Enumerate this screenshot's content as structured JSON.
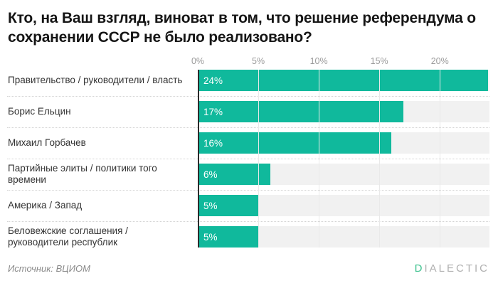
{
  "title": "Кто, на Ваш взгляд, виноват в том, что решение референдума о сохранении СССР не было реализовано?",
  "chart_data": {
    "type": "bar",
    "orientation": "horizontal",
    "categories": [
      "Правительство / руководители / власть",
      "Борис Ельцин",
      "Михаил Горбачев",
      "Партийные элиты / политики того\nвремени",
      "Америка / Запад",
      "Беловежские соглашения /\nруководители республик"
    ],
    "values": [
      24,
      17,
      16,
      6,
      5,
      5
    ],
    "value_labels": [
      "24%",
      "17%",
      "16%",
      "6%",
      "5%",
      "5%"
    ],
    "axis": {
      "ticks": [
        "0%",
        "5%",
        "10%",
        "15%",
        "20%"
      ],
      "tick_values": [
        0,
        5,
        10,
        15,
        20
      ],
      "max": 24.1
    },
    "grid": true,
    "legend": "none",
    "value_label_position": "inside-left",
    "colors": {
      "bar": "#10b99c",
      "track": "#f1f1f1",
      "axis_line": "#2b2b2b"
    }
  },
  "footer": {
    "source": "Источник: ВЦИОМ",
    "logo_first_letter": "D",
    "logo_rest": "IALECTIC",
    "logo_accent_color": "#3ec28f"
  }
}
